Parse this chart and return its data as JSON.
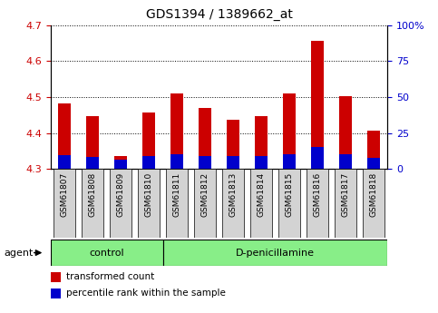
{
  "title": "GDS1394 / 1389662_at",
  "samples": [
    "GSM61807",
    "GSM61808",
    "GSM61809",
    "GSM61810",
    "GSM61811",
    "GSM61812",
    "GSM61813",
    "GSM61814",
    "GSM61815",
    "GSM61816",
    "GSM61817",
    "GSM61818"
  ],
  "red_tops": [
    4.483,
    4.448,
    4.337,
    4.457,
    4.51,
    4.47,
    4.437,
    4.448,
    4.51,
    4.657,
    4.503,
    4.407
  ],
  "blue_tops": [
    4.338,
    4.334,
    4.325,
    4.337,
    4.34,
    4.336,
    4.336,
    4.336,
    4.34,
    4.36,
    4.342,
    4.332
  ],
  "bar_base": 4.3,
  "ylim_left": [
    4.3,
    4.7
  ],
  "ylim_right": [
    0,
    100
  ],
  "yticks_left": [
    4.3,
    4.4,
    4.5,
    4.6,
    4.7
  ],
  "yticks_right": [
    0,
    25,
    50,
    75,
    100
  ],
  "ytick_labels_right": [
    "0",
    "25",
    "50",
    "75",
    "100%"
  ],
  "ctrl_n": 4,
  "treat_n": 8,
  "control_label": "control",
  "treatment_label": "D-penicillamine",
  "agent_label": "agent",
  "red_color": "#CC0000",
  "blue_color": "#0000CC",
  "bar_width": 0.45,
  "grid_color": "#000000",
  "bg_color": "#FFFFFF",
  "tick_bg": "#D3D3D3",
  "green_bg": "#88EE88",
  "legend_red": "transformed count",
  "legend_blue": "percentile rank within the sample",
  "left_tick_color": "#CC0000",
  "right_tick_color": "#0000CC",
  "title_fontsize": 10,
  "axis_fontsize": 8,
  "label_fontsize": 8,
  "sample_fontsize": 6.5
}
